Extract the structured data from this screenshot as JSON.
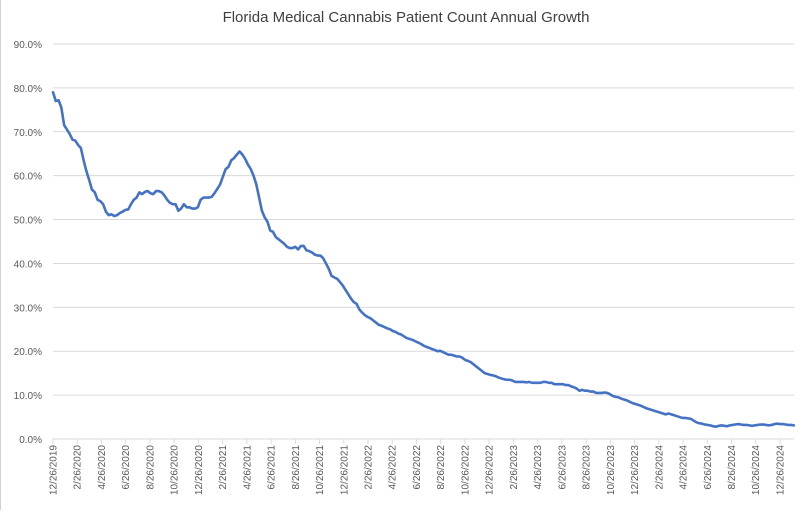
{
  "chart_data": {
    "type": "line",
    "title": "Florida Medical Cannabis Patient Count Annual Growth",
    "xlabel": "",
    "ylabel": "",
    "ylim": [
      0,
      90
    ],
    "y_ticks": [
      "0.0%",
      "10.0%",
      "20.0%",
      "30.0%",
      "40.0%",
      "50.0%",
      "60.0%",
      "70.0%",
      "80.0%",
      "90.0%"
    ],
    "x_ticks": [
      "12/26/2019",
      "2/26/2020",
      "4/26/2020",
      "6/26/2020",
      "8/26/2020",
      "10/26/2020",
      "12/26/2020",
      "2/26/2021",
      "4/26/2021",
      "6/26/2021",
      "8/26/2021",
      "10/26/2021",
      "12/26/2021",
      "2/26/2022",
      "4/26/2022",
      "6/26/2022",
      "8/26/2022",
      "10/26/2022",
      "12/26/2022",
      "2/26/2023",
      "4/26/2023",
      "6/26/2023",
      "8/26/2023",
      "10/26/2023",
      "12/26/2023",
      "2/26/2024",
      "4/26/2024",
      "6/26/2024",
      "8/26/2024",
      "10/26/2024",
      "12/26/2024"
    ],
    "grid": true,
    "legend": "none",
    "series": [
      {
        "color": "#4472c4",
        "points": [
          [
            "12/26/2019",
            79.0
          ],
          [
            "1/2/2020",
            77.0
          ],
          [
            "1/9/2020",
            77.2
          ],
          [
            "1/16/2020",
            75.5
          ],
          [
            "1/23/2020",
            71.5
          ],
          [
            "1/30/2020",
            70.5
          ],
          [
            "2/6/2020",
            69.5
          ],
          [
            "2/13/2020",
            68.2
          ],
          [
            "2/20/2020",
            68.0
          ],
          [
            "2/27/2020",
            67.0
          ],
          [
            "3/5/2020",
            66.3
          ],
          [
            "3/12/2020",
            63.5
          ],
          [
            "3/19/2020",
            61.0
          ],
          [
            "3/26/2020",
            59.0
          ],
          [
            "4/2/2020",
            56.8
          ],
          [
            "4/9/2020",
            56.2
          ],
          [
            "4/16/2020",
            54.5
          ],
          [
            "4/23/2020",
            54.2
          ],
          [
            "4/30/2020",
            53.5
          ],
          [
            "5/7/2020",
            51.8
          ],
          [
            "5/14/2020",
            51.0
          ],
          [
            "5/21/2020",
            51.2
          ],
          [
            "5/28/2020",
            50.8
          ],
          [
            "6/4/2020",
            51.0
          ],
          [
            "6/11/2020",
            51.5
          ],
          [
            "6/18/2020",
            51.8
          ],
          [
            "6/25/2020",
            52.2
          ],
          [
            "7/2/2020",
            52.3
          ],
          [
            "7/9/2020",
            53.5
          ],
          [
            "7/16/2020",
            54.5
          ],
          [
            "7/23/2020",
            55.0
          ],
          [
            "7/30/2020",
            56.2
          ],
          [
            "8/6/2020",
            55.8
          ],
          [
            "8/13/2020",
            56.3
          ],
          [
            "8/20/2020",
            56.5
          ],
          [
            "8/27/2020",
            56.0
          ],
          [
            "9/3/2020",
            55.8
          ],
          [
            "9/10/2020",
            56.5
          ],
          [
            "9/17/2020",
            56.5
          ],
          [
            "9/24/2020",
            56.2
          ],
          [
            "10/1/2020",
            55.5
          ],
          [
            "10/8/2020",
            54.5
          ],
          [
            "10/15/2020",
            53.8
          ],
          [
            "10/22/2020",
            53.5
          ],
          [
            "10/29/2020",
            53.5
          ],
          [
            "11/5/2020",
            52.0
          ],
          [
            "11/12/2020",
            52.5
          ],
          [
            "11/19/2020",
            53.5
          ],
          [
            "11/26/2020",
            52.8
          ],
          [
            "12/3/2020",
            52.8
          ],
          [
            "12/10/2020",
            52.5
          ],
          [
            "12/17/2020",
            52.5
          ],
          [
            "12/24/2020",
            52.8
          ],
          [
            "12/31/2020",
            54.5
          ],
          [
            "1/7/2021",
            55.0
          ],
          [
            "1/14/2021",
            55.0
          ],
          [
            "1/21/2021",
            55.0
          ],
          [
            "1/28/2021",
            55.2
          ],
          [
            "2/4/2021",
            56.0
          ],
          [
            "2/11/2021",
            57.0
          ],
          [
            "2/18/2021",
            58.0
          ],
          [
            "2/25/2021",
            59.8
          ],
          [
            "3/4/2021",
            61.5
          ],
          [
            "3/11/2021",
            62.0
          ],
          [
            "3/18/2021",
            63.5
          ],
          [
            "3/25/2021",
            64.0
          ],
          [
            "4/1/2021",
            64.8
          ],
          [
            "4/8/2021",
            65.5
          ],
          [
            "4/15/2021",
            64.8
          ],
          [
            "4/22/2021",
            63.8
          ],
          [
            "4/29/2021",
            62.5
          ],
          [
            "5/6/2021",
            61.5
          ],
          [
            "5/13/2021",
            60.0
          ],
          [
            "5/20/2021",
            58.0
          ],
          [
            "5/27/2021",
            55.0
          ],
          [
            "6/3/2021",
            52.0
          ],
          [
            "6/10/2021",
            50.5
          ],
          [
            "6/17/2021",
            49.5
          ],
          [
            "6/24/2021",
            47.5
          ],
          [
            "7/1/2021",
            47.2
          ],
          [
            "7/8/2021",
            46.0
          ],
          [
            "7/15/2021",
            45.5
          ],
          [
            "7/22/2021",
            45.0
          ],
          [
            "7/29/2021",
            44.5
          ],
          [
            "8/5/2021",
            43.8
          ],
          [
            "8/12/2021",
            43.5
          ],
          [
            "8/19/2021",
            43.5
          ],
          [
            "8/26/2021",
            43.8
          ],
          [
            "9/2/2021",
            43.2
          ],
          [
            "9/9/2021",
            44.0
          ],
          [
            "9/16/2021",
            44.0
          ],
          [
            "9/23/2021",
            43.0
          ],
          [
            "9/30/2021",
            42.8
          ],
          [
            "10/7/2021",
            42.5
          ],
          [
            "10/14/2021",
            42.0
          ],
          [
            "10/21/2021",
            41.8
          ],
          [
            "10/28/2021",
            41.8
          ],
          [
            "11/4/2021",
            41.2
          ],
          [
            "11/11/2021",
            40.0
          ],
          [
            "11/18/2021",
            38.8
          ],
          [
            "11/25/2021",
            37.2
          ],
          [
            "12/2/2021",
            36.8
          ],
          [
            "12/9/2021",
            36.5
          ],
          [
            "12/16/2021",
            35.8
          ],
          [
            "12/23/2021",
            35.0
          ],
          [
            "12/30/2021",
            34.0
          ],
          [
            "1/6/2022",
            33.0
          ],
          [
            "1/13/2022",
            32.0
          ],
          [
            "1/20/2022",
            31.2
          ],
          [
            "1/27/2022",
            30.8
          ],
          [
            "2/3/2022",
            29.5
          ],
          [
            "2/10/2022",
            28.8
          ],
          [
            "2/17/2022",
            28.2
          ],
          [
            "2/24/2022",
            27.8
          ],
          [
            "3/3/2022",
            27.5
          ],
          [
            "3/10/2022",
            27.0
          ],
          [
            "3/17/2022",
            26.5
          ],
          [
            "3/24/2022",
            26.0
          ],
          [
            "3/31/2022",
            25.8
          ],
          [
            "4/7/2022",
            25.5
          ],
          [
            "4/14/2022",
            25.2
          ],
          [
            "4/21/2022",
            25.0
          ],
          [
            "4/28/2022",
            24.6
          ],
          [
            "5/5/2022",
            24.4
          ],
          [
            "5/12/2022",
            24.0
          ],
          [
            "5/19/2022",
            23.8
          ],
          [
            "5/26/2022",
            23.4
          ],
          [
            "6/2/2022",
            23.0
          ],
          [
            "6/9/2022",
            22.8
          ],
          [
            "6/16/2022",
            22.6
          ],
          [
            "6/23/2022",
            22.3
          ],
          [
            "6/30/2022",
            22.0
          ],
          [
            "7/7/2022",
            21.7
          ],
          [
            "7/14/2022",
            21.3
          ],
          [
            "7/21/2022",
            21.0
          ],
          [
            "7/28/2022",
            20.8
          ],
          [
            "8/4/2022",
            20.5
          ],
          [
            "8/11/2022",
            20.3
          ],
          [
            "8/18/2022",
            20.0
          ],
          [
            "8/25/2022",
            20.1
          ],
          [
            "9/1/2022",
            19.8
          ],
          [
            "9/8/2022",
            19.5
          ],
          [
            "9/15/2022",
            19.2
          ],
          [
            "9/22/2022",
            19.2
          ],
          [
            "9/29/2022",
            19.0
          ],
          [
            "10/6/2022",
            18.8
          ],
          [
            "10/13/2022",
            18.8
          ],
          [
            "10/20/2022",
            18.5
          ],
          [
            "10/27/2022",
            18.0
          ],
          [
            "11/3/2022",
            17.8
          ],
          [
            "11/10/2022",
            17.5
          ],
          [
            "11/17/2022",
            17.0
          ],
          [
            "11/24/2022",
            16.5
          ],
          [
            "12/1/2022",
            16.0
          ],
          [
            "12/8/2022",
            15.5
          ],
          [
            "12/15/2022",
            15.0
          ],
          [
            "12/22/2022",
            14.8
          ],
          [
            "12/29/2022",
            14.6
          ],
          [
            "1/5/2023",
            14.5
          ],
          [
            "1/12/2023",
            14.3
          ],
          [
            "1/19/2023",
            14.0
          ],
          [
            "1/26/2023",
            13.8
          ],
          [
            "2/2/2023",
            13.6
          ],
          [
            "2/9/2023",
            13.5
          ],
          [
            "2/16/2023",
            13.5
          ],
          [
            "2/23/2023",
            13.3
          ],
          [
            "3/2/2023",
            13.0
          ],
          [
            "3/9/2023",
            13.0
          ],
          [
            "3/16/2023",
            13.0
          ],
          [
            "3/23/2023",
            13.0
          ],
          [
            "3/30/2023",
            12.9
          ],
          [
            "4/6/2023",
            13.0
          ],
          [
            "4/13/2023",
            12.8
          ],
          [
            "4/20/2023",
            12.8
          ],
          [
            "4/27/2023",
            12.8
          ],
          [
            "5/4/2023",
            12.8
          ],
          [
            "5/11/2023",
            13.0
          ],
          [
            "5/18/2023",
            13.0
          ],
          [
            "5/25/2023",
            12.8
          ],
          [
            "6/1/2023",
            12.8
          ],
          [
            "6/8/2023",
            12.5
          ],
          [
            "6/15/2023",
            12.5
          ],
          [
            "6/22/2023",
            12.5
          ],
          [
            "6/29/2023",
            12.5
          ],
          [
            "7/6/2023",
            12.3
          ],
          [
            "7/13/2023",
            12.3
          ],
          [
            "7/20/2023",
            12.0
          ],
          [
            "7/27/2023",
            11.8
          ],
          [
            "8/3/2023",
            11.5
          ],
          [
            "8/10/2023",
            11.0
          ],
          [
            "8/17/2023",
            11.2
          ],
          [
            "8/24/2023",
            11.0
          ],
          [
            "8/31/2023",
            11.0
          ],
          [
            "9/7/2023",
            10.8
          ],
          [
            "9/14/2023",
            10.8
          ],
          [
            "9/21/2023",
            10.5
          ],
          [
            "9/28/2023",
            10.5
          ],
          [
            "10/5/2023",
            10.5
          ],
          [
            "10/12/2023",
            10.6
          ],
          [
            "10/19/2023",
            10.5
          ],
          [
            "10/26/2023",
            10.2
          ],
          [
            "11/2/2023",
            9.8
          ],
          [
            "11/9/2023",
            9.6
          ],
          [
            "11/16/2023",
            9.5
          ],
          [
            "11/23/2023",
            9.2
          ],
          [
            "11/30/2023",
            9.0
          ],
          [
            "12/7/2023",
            8.8
          ],
          [
            "12/14/2023",
            8.5
          ],
          [
            "12/21/2023",
            8.2
          ],
          [
            "12/28/2023",
            8.0
          ],
          [
            "1/4/2024",
            7.8
          ],
          [
            "1/11/2024",
            7.6
          ],
          [
            "1/18/2024",
            7.3
          ],
          [
            "1/25/2024",
            7.0
          ],
          [
            "2/1/2024",
            6.8
          ],
          [
            "2/8/2024",
            6.6
          ],
          [
            "2/15/2024",
            6.4
          ],
          [
            "2/22/2024",
            6.2
          ],
          [
            "2/29/2024",
            6.0
          ],
          [
            "3/7/2024",
            5.8
          ],
          [
            "3/14/2024",
            5.6
          ],
          [
            "3/21/2024",
            5.8
          ],
          [
            "3/28/2024",
            5.6
          ],
          [
            "4/4/2024",
            5.4
          ],
          [
            "4/11/2024",
            5.2
          ],
          [
            "4/18/2024",
            5.0
          ],
          [
            "4/25/2024",
            4.8
          ],
          [
            "5/2/2024",
            4.8
          ],
          [
            "5/9/2024",
            4.7
          ],
          [
            "5/16/2024",
            4.6
          ],
          [
            "5/23/2024",
            4.2
          ],
          [
            "5/30/2024",
            3.8
          ],
          [
            "6/6/2024",
            3.6
          ],
          [
            "6/13/2024",
            3.5
          ],
          [
            "6/20/2024",
            3.3
          ],
          [
            "6/27/2024",
            3.2
          ],
          [
            "7/4/2024",
            3.1
          ],
          [
            "7/11/2024",
            2.9
          ],
          [
            "7/18/2024",
            2.8
          ],
          [
            "7/25/2024",
            3.0
          ],
          [
            "8/1/2024",
            3.1
          ],
          [
            "8/8/2024",
            3.0
          ],
          [
            "8/15/2024",
            2.9
          ],
          [
            "8/22/2024",
            3.1
          ],
          [
            "8/29/2024",
            3.2
          ],
          [
            "9/5/2024",
            3.3
          ],
          [
            "9/12/2024",
            3.4
          ],
          [
            "9/19/2024",
            3.3
          ],
          [
            "9/26/2024",
            3.2
          ],
          [
            "10/3/2024",
            3.2
          ],
          [
            "10/10/2024",
            3.1
          ],
          [
            "10/17/2024",
            3.0
          ],
          [
            "10/24/2024",
            3.1
          ],
          [
            "10/31/2024",
            3.2
          ],
          [
            "11/7/2024",
            3.3
          ],
          [
            "11/14/2024",
            3.3
          ],
          [
            "11/21/2024",
            3.2
          ],
          [
            "11/28/2024",
            3.1
          ],
          [
            "12/5/2024",
            3.2
          ],
          [
            "12/12/2024",
            3.4
          ],
          [
            "12/19/2024",
            3.5
          ],
          [
            "12/26/2024",
            3.4
          ],
          [
            "1/2/2025",
            3.4
          ],
          [
            "1/9/2025",
            3.3
          ],
          [
            "1/16/2025",
            3.2
          ],
          [
            "1/23/2025",
            3.2
          ],
          [
            "1/30/2025",
            3.1
          ]
        ]
      }
    ]
  }
}
